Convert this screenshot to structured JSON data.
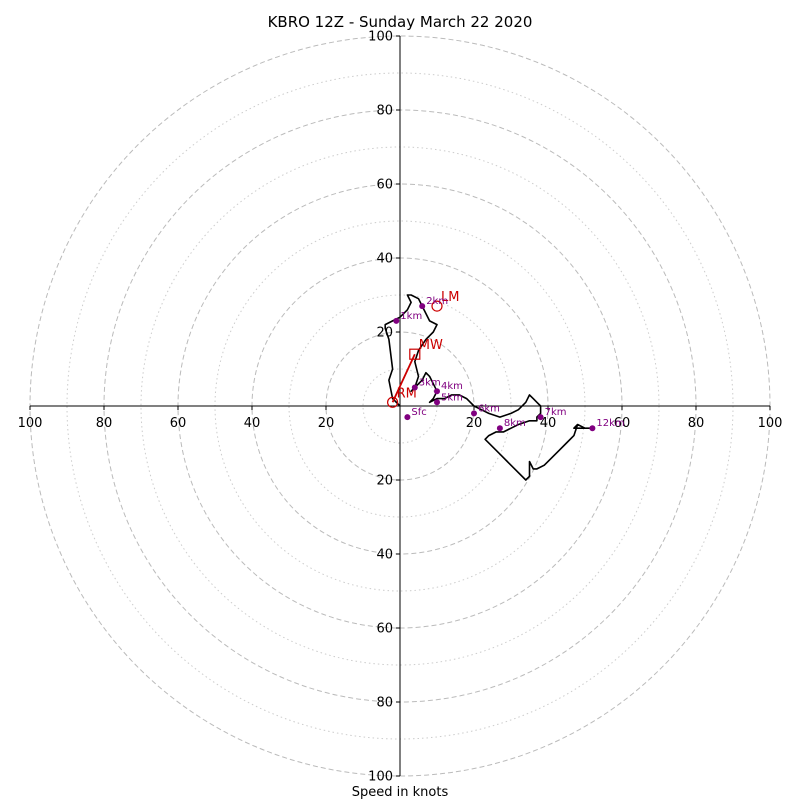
{
  "chart_data": {
    "type": "hodograph",
    "title": "KBRO 12Z - Sunday March 22 2020",
    "xlabel": "Speed in knots",
    "axis_range": [
      -100,
      100
    ],
    "x_ticks": [
      {
        "value": -100,
        "label": "100"
      },
      {
        "value": -80,
        "label": "80"
      },
      {
        "value": -60,
        "label": "60"
      },
      {
        "value": -40,
        "label": "40"
      },
      {
        "value": -20,
        "label": "20"
      },
      {
        "value": 20,
        "label": "20"
      },
      {
        "value": 40,
        "label": "40"
      },
      {
        "value": 60,
        "label": "60"
      },
      {
        "value": 80,
        "label": "80"
      },
      {
        "value": 100,
        "label": "100"
      }
    ],
    "y_ticks": [
      {
        "value": 100,
        "label": "100"
      },
      {
        "value": 80,
        "label": "80"
      },
      {
        "value": 60,
        "label": "60"
      },
      {
        "value": 40,
        "label": "40"
      },
      {
        "value": 20,
        "label": "20"
      },
      {
        "value": -20,
        "label": "20"
      },
      {
        "value": -40,
        "label": "40"
      },
      {
        "value": -60,
        "label": "60"
      },
      {
        "value": -80,
        "label": "80"
      },
      {
        "value": -100,
        "label": "100"
      }
    ],
    "rings_dashed": [
      20,
      40,
      60,
      80,
      100
    ],
    "rings_dotted": [
      10,
      30,
      50,
      70,
      90
    ],
    "colors": {
      "trace": "#000000",
      "height_markers": "#800080",
      "storm_motion": "#cc0000",
      "rings": "#bbbbbb",
      "axes": "#000000"
    },
    "trace": [
      [
        0,
        0
      ],
      [
        -2,
        2
      ],
      [
        -3,
        7
      ],
      [
        -2,
        10
      ],
      [
        -3,
        18
      ],
      [
        -4,
        21
      ],
      [
        -4,
        22
      ],
      [
        -2,
        23
      ],
      [
        0,
        24
      ],
      [
        2,
        26
      ],
      [
        3,
        28
      ],
      [
        2,
        30
      ],
      [
        3,
        30
      ],
      [
        5,
        29
      ],
      [
        6,
        27
      ],
      [
        7,
        25
      ],
      [
        8,
        23
      ],
      [
        10,
        22
      ],
      [
        9,
        20
      ],
      [
        7,
        18
      ],
      [
        5,
        15
      ],
      [
        4,
        12
      ],
      [
        5,
        8
      ],
      [
        4,
        5
      ],
      [
        3,
        4
      ],
      [
        4,
        5
      ],
      [
        6,
        7
      ],
      [
        7,
        9
      ],
      [
        8,
        8
      ],
      [
        9,
        6
      ],
      [
        10,
        4
      ],
      [
        9,
        2
      ],
      [
        8,
        1
      ],
      [
        10,
        2
      ],
      [
        12,
        2
      ],
      [
        14,
        3
      ],
      [
        16,
        3
      ],
      [
        18,
        2
      ],
      [
        20,
        0
      ],
      [
        22,
        -1
      ],
      [
        24,
        -2
      ],
      [
        27,
        -3
      ],
      [
        30,
        -2
      ],
      [
        32,
        -1
      ],
      [
        34,
        1
      ],
      [
        35,
        3
      ],
      [
        36,
        2
      ],
      [
        37,
        1
      ],
      [
        38,
        0
      ],
      [
        38,
        -2
      ],
      [
        37,
        -3
      ],
      [
        37,
        -4
      ],
      [
        35,
        -4
      ],
      [
        32,
        -5
      ],
      [
        30,
        -6
      ],
      [
        28,
        -7
      ],
      [
        26,
        -7
      ],
      [
        24,
        -8
      ],
      [
        23,
        -9
      ],
      [
        25,
        -11
      ],
      [
        27,
        -13
      ],
      [
        29,
        -15
      ],
      [
        31,
        -17
      ],
      [
        34,
        -20
      ],
      [
        35,
        -19
      ],
      [
        35,
        -17
      ],
      [
        35,
        -15
      ],
      [
        36,
        -17
      ],
      [
        37,
        -17
      ],
      [
        39,
        -16
      ],
      [
        41,
        -14
      ],
      [
        43,
        -12
      ],
      [
        45,
        -10
      ],
      [
        47,
        -8
      ],
      [
        48,
        -5
      ],
      [
        47,
        -6
      ],
      [
        49,
        -6
      ],
      [
        52,
        -6
      ],
      [
        50,
        -6
      ],
      [
        48,
        -5
      ]
    ],
    "height_markers": [
      {
        "label": "Sfc",
        "u": 2,
        "v": -3
      },
      {
        "label": "1km",
        "u": -1,
        "v": 23
      },
      {
        "label": "2km",
        "u": 6,
        "v": 27
      },
      {
        "label": "3km",
        "u": 4,
        "v": 5
      },
      {
        "label": "4km",
        "u": 10,
        "v": 4
      },
      {
        "label": "5km",
        "u": 10,
        "v": 1
      },
      {
        "label": "6km",
        "u": 20,
        "v": -2
      },
      {
        "label": "7km",
        "u": 38,
        "v": -3
      },
      {
        "label": "8km",
        "u": 27,
        "v": -6
      },
      {
        "label": "12km",
        "u": 52,
        "v": -6
      }
    ],
    "storm_motions": [
      {
        "label": "LM",
        "u": 10,
        "v": 27,
        "marker": "circle"
      },
      {
        "label": "MW",
        "u": 4,
        "v": 14,
        "marker": "square"
      },
      {
        "label": "RM",
        "u": -2,
        "v": 1,
        "marker": "circle"
      }
    ]
  }
}
